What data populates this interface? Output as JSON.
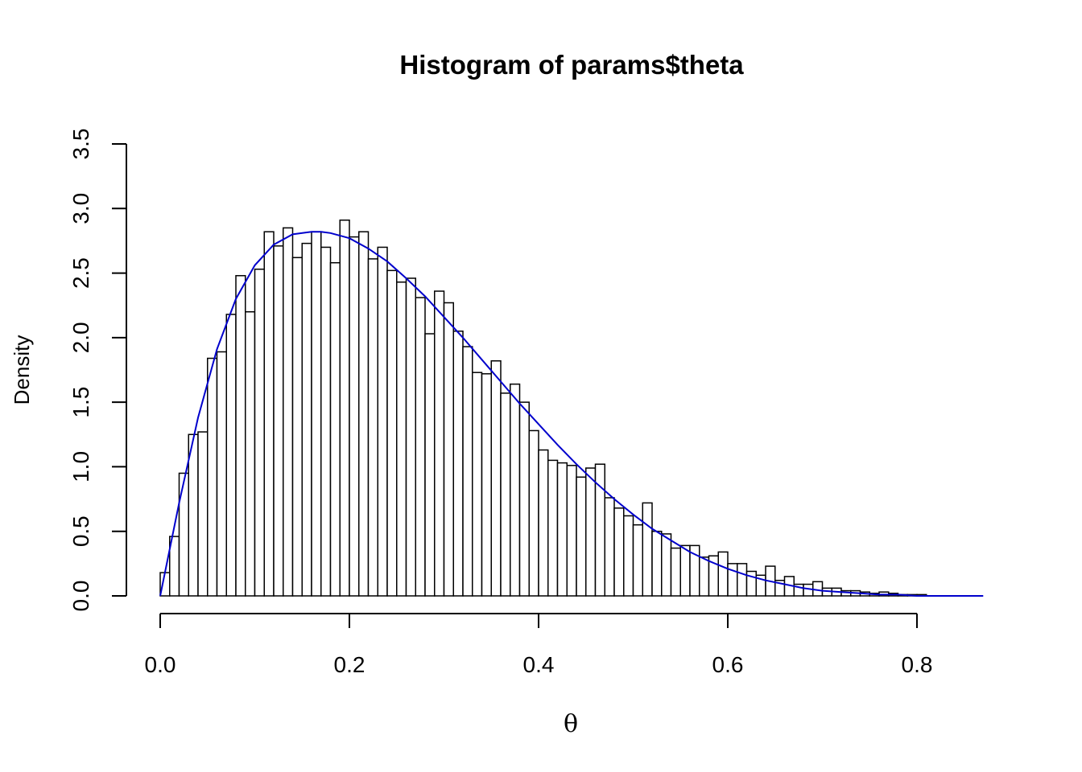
{
  "chart_data": {
    "type": "bar",
    "title": "Histogram of params$theta",
    "xlabel": "θ",
    "ylabel": "Density",
    "xlim": [
      0.0,
      0.87
    ],
    "ylim": [
      0.0,
      3.5
    ],
    "x_ticks": [
      "0.0",
      "0.2",
      "0.4",
      "0.6",
      "0.8"
    ],
    "y_ticks": [
      "0.0",
      "0.5",
      "1.0",
      "1.5",
      "2.0",
      "2.5",
      "3.0",
      "3.5"
    ],
    "bin_width": 0.01,
    "bin_start": 0.0,
    "values": [
      0.18,
      0.46,
      0.95,
      1.25,
      1.27,
      1.84,
      1.89,
      2.18,
      2.48,
      2.2,
      2.53,
      2.82,
      2.71,
      2.85,
      2.62,
      2.73,
      2.82,
      2.7,
      2.58,
      2.91,
      2.78,
      2.82,
      2.61,
      2.7,
      2.52,
      2.43,
      2.46,
      2.31,
      2.03,
      2.36,
      2.27,
      2.05,
      1.93,
      1.73,
      1.72,
      1.82,
      1.57,
      1.64,
      1.5,
      1.28,
      1.13,
      1.05,
      1.03,
      1.01,
      0.92,
      0.99,
      1.02,
      0.76,
      0.68,
      0.62,
      0.55,
      0.72,
      0.5,
      0.48,
      0.37,
      0.39,
      0.39,
      0.3,
      0.31,
      0.34,
      0.25,
      0.25,
      0.19,
      0.16,
      0.23,
      0.12,
      0.15,
      0.09,
      0.09,
      0.11,
      0.06,
      0.06,
      0.04,
      0.04,
      0.03,
      0.02,
      0.03,
      0.02,
      0.01,
      0.01,
      0.01,
      0.0,
      0.0,
      0.0,
      0.0,
      0.0,
      0.0
    ],
    "overlay_curve": {
      "color": "#0000cc",
      "x": [
        0.0,
        0.02,
        0.04,
        0.06,
        0.08,
        0.1,
        0.12,
        0.14,
        0.16,
        0.17,
        0.18,
        0.2,
        0.22,
        0.24,
        0.26,
        0.28,
        0.3,
        0.32,
        0.34,
        0.36,
        0.38,
        0.4,
        0.42,
        0.44,
        0.46,
        0.48,
        0.5,
        0.52,
        0.54,
        0.56,
        0.58,
        0.6,
        0.62,
        0.64,
        0.66,
        0.68,
        0.7,
        0.72,
        0.74,
        0.76,
        0.78,
        0.8,
        0.83,
        0.87
      ],
      "y": [
        0.0,
        0.72,
        1.38,
        1.91,
        2.3,
        2.56,
        2.72,
        2.8,
        2.82,
        2.82,
        2.81,
        2.77,
        2.69,
        2.59,
        2.46,
        2.32,
        2.16,
        2.0,
        1.83,
        1.66,
        1.49,
        1.33,
        1.17,
        1.02,
        0.88,
        0.75,
        0.63,
        0.52,
        0.43,
        0.34,
        0.27,
        0.21,
        0.16,
        0.12,
        0.09,
        0.06,
        0.04,
        0.03,
        0.02,
        0.01,
        0.01,
        0.0,
        0.0,
        0.0
      ]
    },
    "bar_fill": "#ffffff",
    "bar_stroke": "#000000",
    "grid": false,
    "legend": "none"
  }
}
